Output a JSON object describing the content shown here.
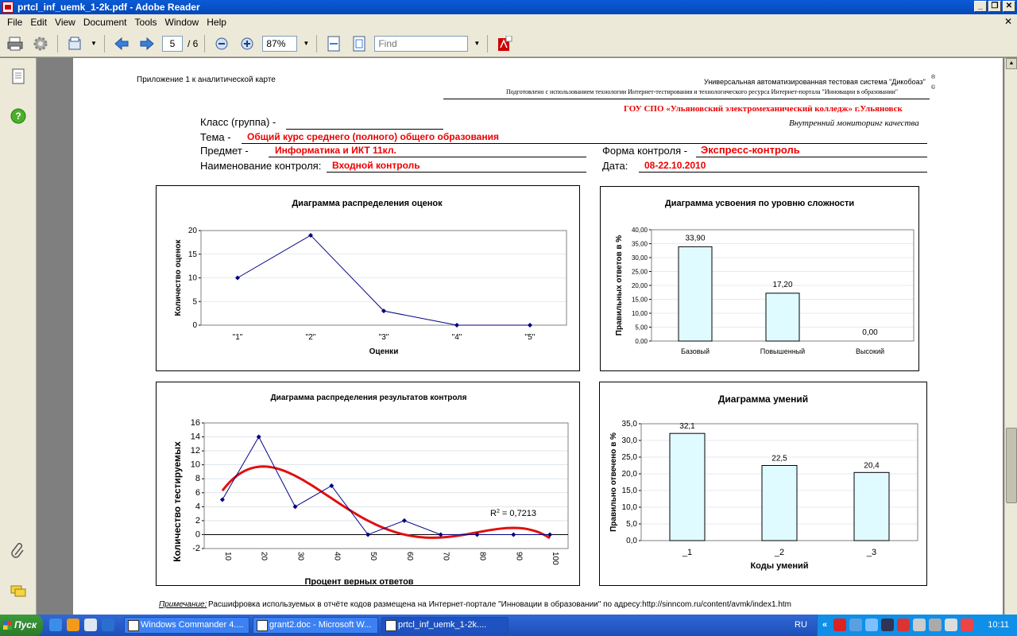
{
  "window": {
    "title": "prtcl_inf_uemk_1-2k.pdf - Adobe Reader",
    "btn_min": "_",
    "btn_max": "❐",
    "btn_close": "✕"
  },
  "menu": [
    "File",
    "Edit",
    "View",
    "Document",
    "Tools",
    "Window",
    "Help"
  ],
  "menu_close": "✕",
  "toolbar": {
    "page_current": "5",
    "page_total": "/ 6",
    "zoom": "87%",
    "find_placeholder": "Find"
  },
  "doc": {
    "appendix": "Приложение 1 к аналитической карте",
    "sys_line1": "Универсальная автоматизированная тестовая система \"Дикобоаз\"",
    "sys_reg": "®",
    "sys_line2": "Подготовлено с использованием технологии Интернет-тестирования и технологического ресурса  Интернет-портала \"Инновации в образовании\"",
    "sys_c": "©",
    "org": "ГОУ СПО «Ульяновский электромеханический колледж» г.Ульяновск",
    "monitoring": "Внутренний мониторинг  качества",
    "class_label": "Класс (группа) -",
    "theme_label": "Тема -",
    "theme_value": "Общий курс среднего (полного) общего образования",
    "subject_label": "Предмет  -",
    "subject_value": "Информатика и ИКТ 11кл.",
    "form_label": "Форма контроля -",
    "form_value": "Экспресс-контроль",
    "control_label": "Наименование контроля:",
    "control_value": "Входной контроль",
    "date_label": "Дата:",
    "date_value": "08-22.10.2010",
    "note_label": "Примечание:",
    "note_text": " Расшифровка используемых в отчёте кодов размещена на Интернет-портале \"Инновации в образовании\" по адресу:http://sinncom.ru/content/avmk/index1.htm"
  },
  "chart_data": [
    {
      "type": "line",
      "title": "Диаграмма распределения оценок",
      "xlabel": "Оценки",
      "ylabel": "Количество оценок",
      "categories": [
        "\"1\"",
        "\"2\"",
        "\"3\"",
        "\"4\"",
        "\"5\""
      ],
      "values": [
        10,
        19,
        3,
        0,
        0
      ],
      "ylim": [
        0,
        20
      ],
      "yticks": [
        "0",
        "5",
        "10",
        "15",
        "20"
      ]
    },
    {
      "type": "bar",
      "title": "Диаграмма усвоения по уровню сложности",
      "ylabel": "Правильных ответов в %",
      "categories": [
        "Базовый",
        "Повышенный",
        "Высокий"
      ],
      "values": [
        33.9,
        17.2,
        0
      ],
      "value_labels": [
        "33,90",
        "17,20",
        "0,00"
      ],
      "ylim": [
        0,
        40
      ],
      "yticks": [
        "0,00",
        "5,00",
        "10,00",
        "15,00",
        "20,00",
        "25,00",
        "30,00",
        "35,00",
        "40,00"
      ]
    },
    {
      "type": "line",
      "title": "Диаграмма распределения результатов контроля",
      "xlabel": "Процент верных ответов",
      "ylabel": "Количество тестируемых",
      "x": [
        10,
        20,
        30,
        40,
        50,
        60,
        70,
        80,
        90,
        100
      ],
      "xticks": [
        "10",
        "20",
        "30",
        "40",
        "50",
        "60",
        "70",
        "80",
        "90",
        "100"
      ],
      "values": [
        5,
        14,
        4,
        7,
        0,
        2,
        0,
        0,
        0,
        0
      ],
      "trendline_r2": "R² = 0,7213",
      "r2_base": "R",
      "r2_sup": "2",
      "r2_rest": " = 0,7213",
      "ylim": [
        -2,
        16
      ],
      "yticks": [
        "-2",
        "0",
        "2",
        "4",
        "6",
        "8",
        "10",
        "12",
        "14",
        "16"
      ]
    },
    {
      "type": "bar",
      "title": "Диаграмма умений",
      "xlabel": "Коды умений",
      "ylabel": "Правильно отвечено в %",
      "categories": [
        "_1",
        "_2",
        "_3"
      ],
      "values": [
        32.1,
        22.5,
        20.4
      ],
      "value_labels": [
        "32,1",
        "22,5",
        "20,4"
      ],
      "ylim": [
        0,
        35
      ],
      "yticks": [
        "0,0",
        "5,0",
        "10,0",
        "15,0",
        "20,0",
        "25,0",
        "30,0",
        "35,0"
      ]
    }
  ],
  "taskbar": {
    "start": "Пуск",
    "tasks": [
      "Windows Commander 4....",
      "grant2.doc - Microsoft W...",
      "prtcl_inf_uemk_1-2k...."
    ],
    "lang": "RU",
    "clock": "10:11"
  }
}
